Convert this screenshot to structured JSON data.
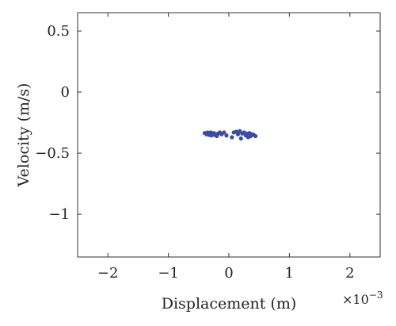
{
  "chart_data": {
    "type": "scatter",
    "title": "",
    "xlabel": "Displacement (m)",
    "ylabel": "Velocity (m/s)",
    "x_exponent_base": "×10",
    "x_exponent_power": "−3",
    "xlim": [
      -2.5,
      2.5
    ],
    "ylim": [
      -1.35,
      0.65
    ],
    "xticks": [
      -2,
      -1,
      0,
      1,
      2
    ],
    "xtick_labels": [
      "−2",
      "−1",
      "0",
      "1",
      "2"
    ],
    "yticks": [
      0.5,
      0,
      -0.5,
      -1
    ],
    "ytick_labels": [
      "0.5",
      "0",
      "−0.5",
      "−1"
    ],
    "grid": false,
    "marker_color": "#3b4aa8",
    "points": [
      {
        "x": -0.4,
        "y": -0.335
      },
      {
        "x": -0.37,
        "y": -0.345
      },
      {
        "x": -0.35,
        "y": -0.33
      },
      {
        "x": -0.33,
        "y": -0.35
      },
      {
        "x": -0.32,
        "y": -0.34
      },
      {
        "x": -0.3,
        "y": -0.33
      },
      {
        "x": -0.29,
        "y": -0.355
      },
      {
        "x": -0.27,
        "y": -0.34
      },
      {
        "x": -0.25,
        "y": -0.335
      },
      {
        "x": -0.24,
        "y": -0.35
      },
      {
        "x": -0.22,
        "y": -0.345
      },
      {
        "x": -0.2,
        "y": -0.36
      },
      {
        "x": -0.18,
        "y": -0.34
      },
      {
        "x": -0.15,
        "y": -0.33
      },
      {
        "x": -0.12,
        "y": -0.345
      },
      {
        "x": -0.08,
        "y": -0.33
      },
      {
        "x": -0.04,
        "y": -0.355
      },
      {
        "x": 0.05,
        "y": -0.37
      },
      {
        "x": 0.08,
        "y": -0.33
      },
      {
        "x": 0.12,
        "y": -0.325
      },
      {
        "x": 0.15,
        "y": -0.345
      },
      {
        "x": 0.18,
        "y": -0.32
      },
      {
        "x": 0.2,
        "y": -0.38
      },
      {
        "x": 0.22,
        "y": -0.34
      },
      {
        "x": 0.25,
        "y": -0.33
      },
      {
        "x": 0.28,
        "y": -0.355
      },
      {
        "x": 0.3,
        "y": -0.34
      },
      {
        "x": 0.32,
        "y": -0.37
      },
      {
        "x": 0.34,
        "y": -0.335
      },
      {
        "x": 0.36,
        "y": -0.36
      },
      {
        "x": 0.38,
        "y": -0.345
      },
      {
        "x": 0.41,
        "y": -0.35
      },
      {
        "x": 0.44,
        "y": -0.36
      }
    ]
  }
}
